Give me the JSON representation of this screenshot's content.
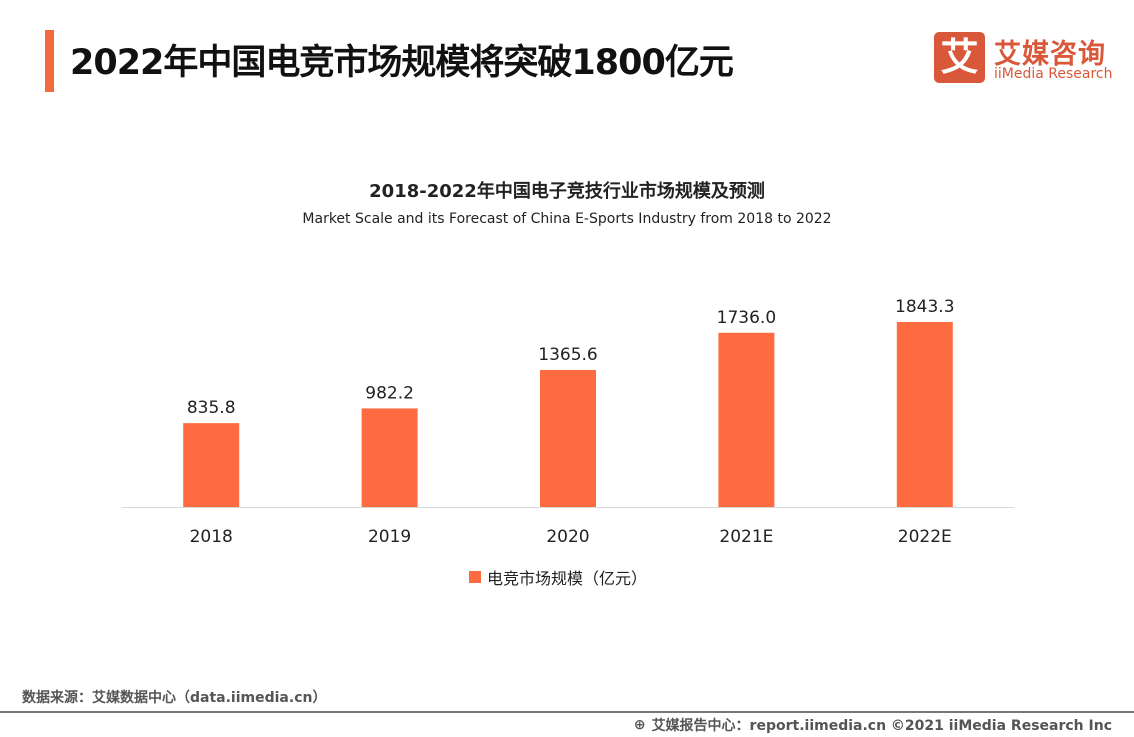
{
  "header": {
    "title": "2022年中国电竞市场规模将突破1800亿元"
  },
  "logo": {
    "mark": "艾",
    "name_cn": "艾媒咨询",
    "name_en": "iiMedia Research"
  },
  "chart_data": {
    "type": "bar",
    "title": "2018-2022年中国电子竞技行业市场规模及预测",
    "subtitle": "Market Scale and its Forecast of China E-Sports Industry from 2018 to 2022",
    "categories": [
      "2018",
      "2019",
      "2020",
      "2021E",
      "2022E"
    ],
    "series": [
      {
        "name": "电竞市场规模（亿元）",
        "values": [
          835.8,
          982.2,
          1365.6,
          1736.0,
          1843.3
        ],
        "labels": [
          "835.8",
          "982.2",
          "1365.6",
          "1736.0",
          "1843.3"
        ]
      }
    ],
    "ylim": [
      0,
      1843.3
    ],
    "grid": false,
    "legend": "bottom",
    "color": "#ff6b40"
  },
  "footer": {
    "source": "数据来源：艾媒数据中心（data.iimedia.cn）",
    "credit": "艾媒报告中心：report.iimedia.cn ©2021  iiMedia Research  Inc",
    "globe_icon": "globe-icon"
  }
}
